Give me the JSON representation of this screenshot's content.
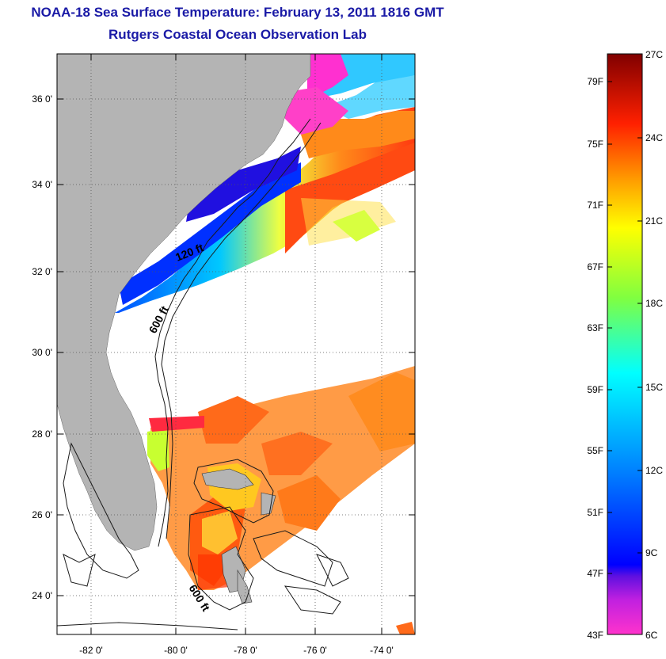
{
  "header": {
    "title": "NOAA-18 Sea Surface Temperature:  February 13, 2011 1816 GMT",
    "subtitle": "Rutgers Coastal Ocean Observation Lab"
  },
  "map": {
    "lat_ticks": [
      "24 0'",
      "26 0'",
      "28 0'",
      "30 0'",
      "32 0'",
      "34 0'",
      "36 0'"
    ],
    "lon_ticks": [
      "-82 0'",
      "-80 0'",
      "-78 0'",
      "-76 0'",
      "-74 0'"
    ],
    "contour_labels": [
      "120 ft",
      "600 ft",
      "600 ft"
    ],
    "land_color": "#b4b4b4"
  },
  "colorbar": {
    "fahrenheit_labels": [
      "79F",
      "75F",
      "71F",
      "67F",
      "63F",
      "59F",
      "55F",
      "51F",
      "47F",
      "43F"
    ],
    "celsius_labels": [
      "27C",
      "24C",
      "21C",
      "18C",
      "15C",
      "12C",
      "9C",
      "6C"
    ]
  }
}
